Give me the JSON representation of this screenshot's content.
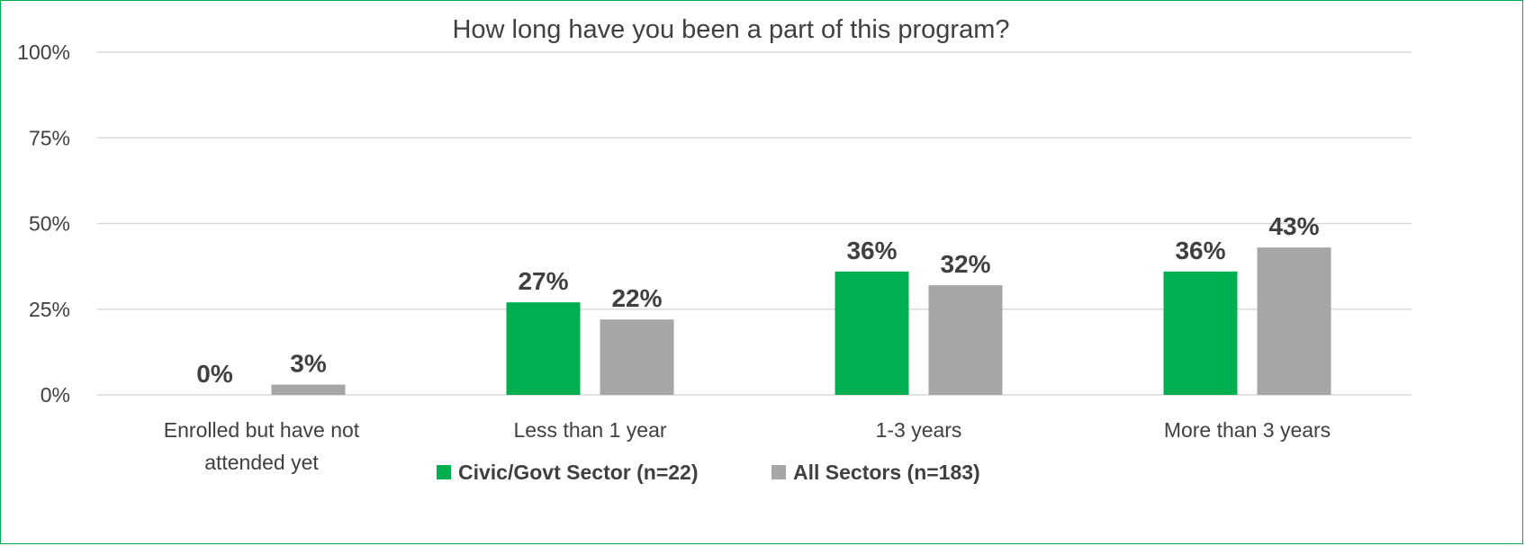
{
  "chart_data": {
    "type": "bar",
    "title": "How long have you been a part of this program?",
    "xlabel": "",
    "ylabel": "",
    "categories": [
      [
        "Enrolled but have not",
        "attended yet"
      ],
      [
        "Less than 1 year"
      ],
      [
        "1-3 years"
      ],
      [
        "More than 3 years"
      ]
    ],
    "series": [
      {
        "name": "Civic/Govt Sector (n=22)",
        "color": "#00b050",
        "values": [
          0,
          27,
          36,
          36
        ],
        "labels": [
          "0%",
          "27%",
          "36%",
          "36%"
        ]
      },
      {
        "name": "All Sectors (n=183)",
        "color": "#a6a6a6",
        "values": [
          3,
          22,
          32,
          43
        ],
        "labels": [
          "3%",
          "22%",
          "32%",
          "43%"
        ]
      }
    ],
    "ylim": [
      0,
      100
    ],
    "yticks": [
      0,
      25,
      50,
      75,
      100
    ],
    "ytick_labels": [
      "0%",
      "25%",
      "50%",
      "75%",
      "100%"
    ],
    "grid": true,
    "legend_position": "bottom"
  }
}
